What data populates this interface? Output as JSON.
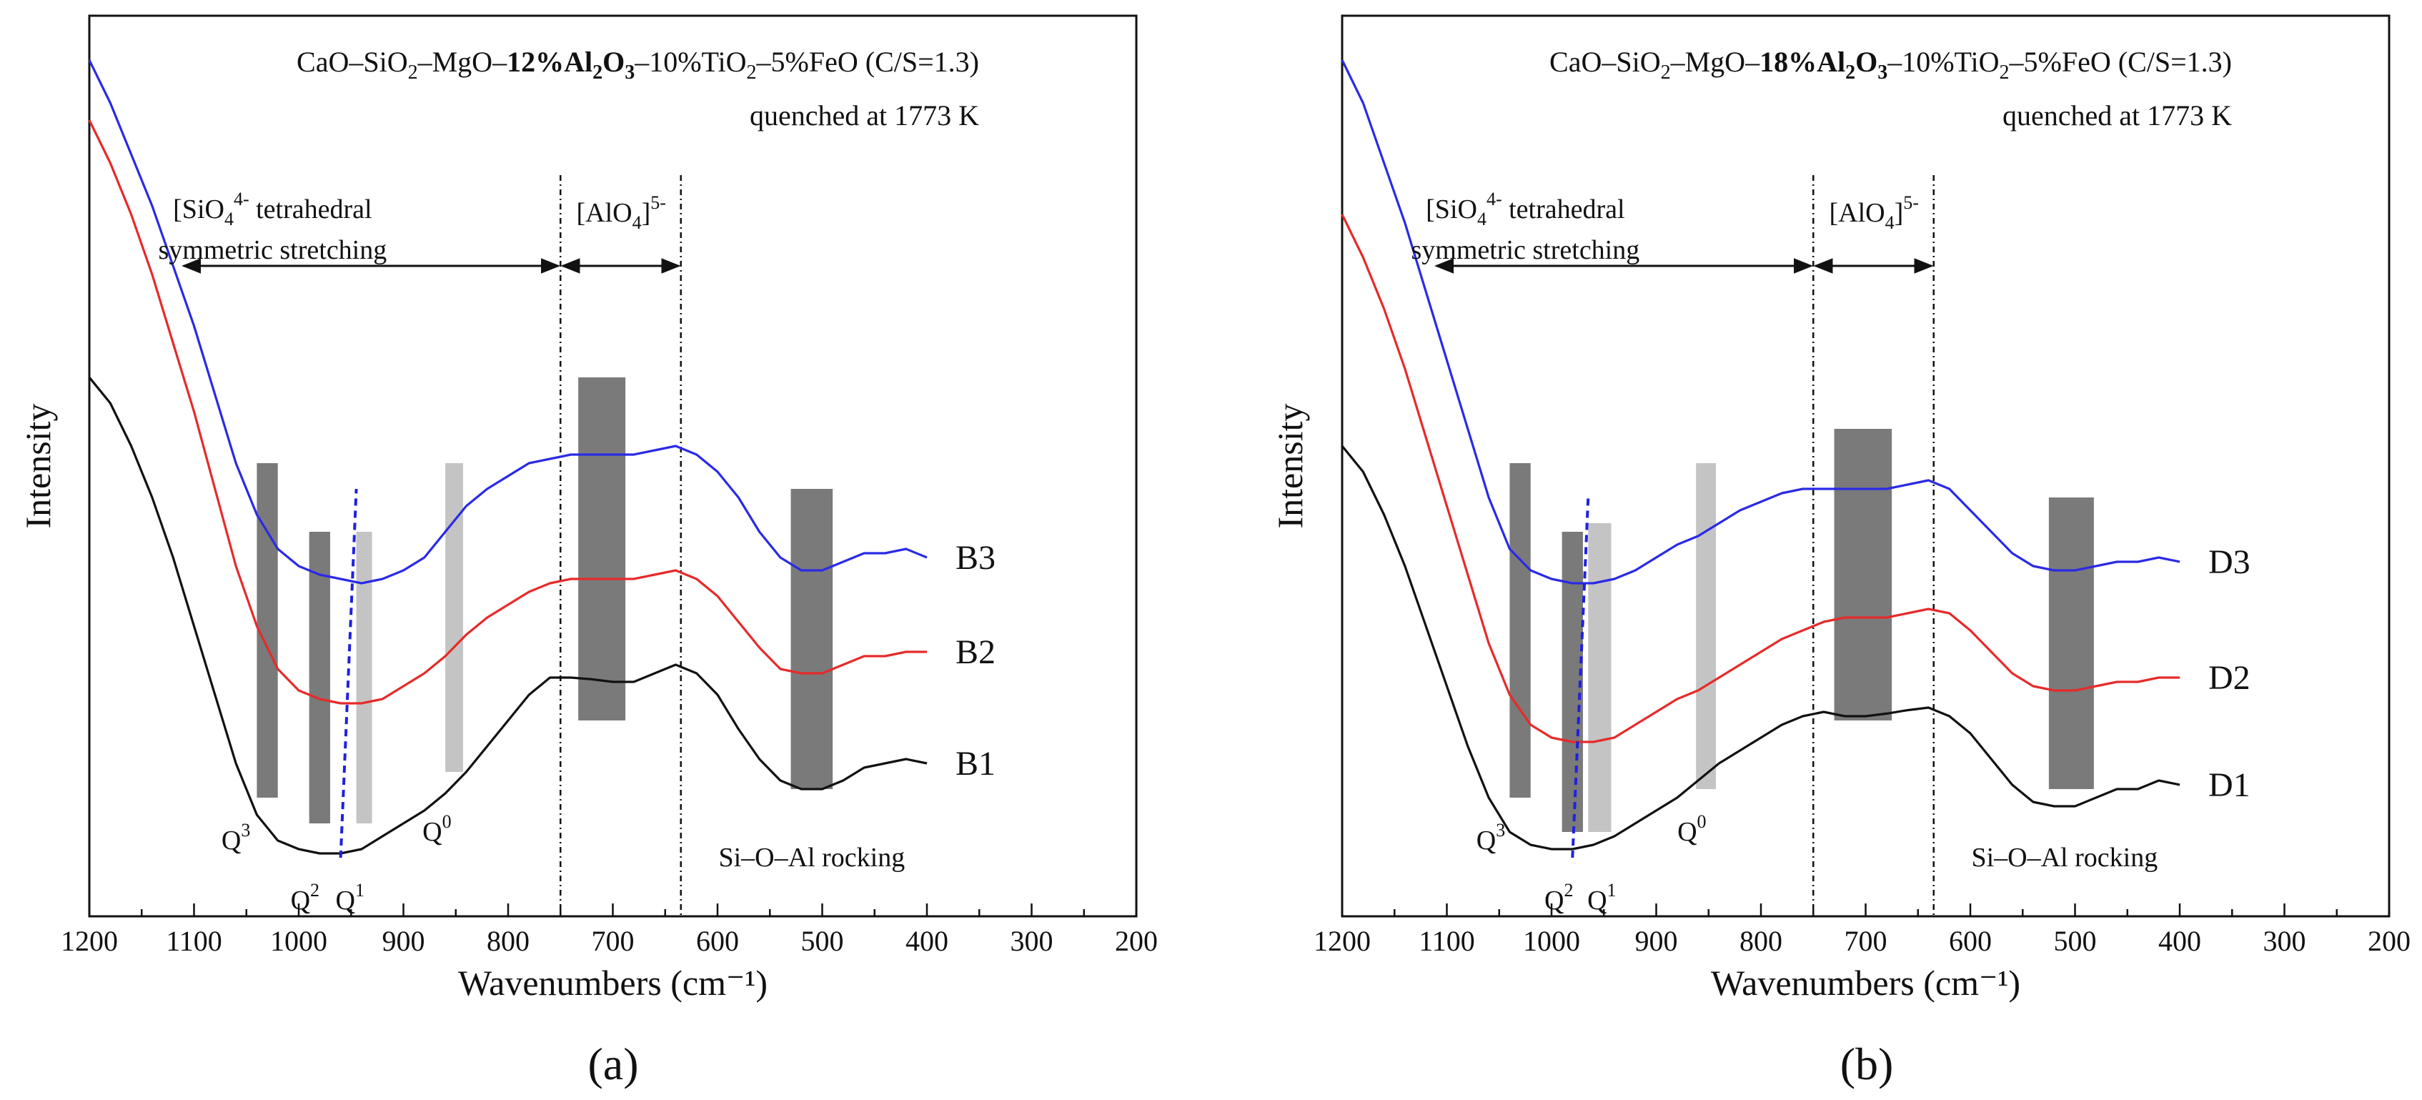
{
  "charts": [
    {
      "panel_label": "(a)",
      "title_parts": {
        "pre": "CaO–SiO",
        "pre_sub": "2",
        "mid": "–MgO–",
        "bold": "12%Al",
        "bold_sub1": "2",
        "bold_mid": "O",
        "bold_sub2": "3",
        "post": "–10%TiO",
        "post_sub": "2",
        "tail": "–5%FeO (C/S=1.3)"
      },
      "quench_text": "quenched at 1773 K"
    },
    {
      "panel_label": "(b)",
      "title_parts": {
        "pre": "CaO–SiO",
        "pre_sub": "2",
        "mid": "–MgO–",
        "bold": "18%Al",
        "bold_sub1": "2",
        "bold_mid": "O",
        "bold_sub2": "3",
        "post": "–10%TiO",
        "post_sub": "2",
        "tail": "–5%FeO (C/S=1.3)"
      },
      "quench_text": "quenched at 1773 K"
    }
  ],
  "chart_data": [
    {
      "type": "line",
      "title": "CaO–SiO2–MgO–12%Al2O3–10%TiO2–5%FeO (C/S=1.3) quenched at 1773 K",
      "xlabel": "Wavenumbers (cm⁻¹)",
      "ylabel": "Intensity",
      "xlim": [
        1200,
        200
      ],
      "ylim": [
        0,
        1.0
      ],
      "xticks": [
        1200,
        1100,
        1000,
        900,
        800,
        700,
        600,
        500,
        400,
        300,
        200
      ],
      "tick_labels": [
        "1200",
        "1100",
        "1000",
        "900",
        "800",
        "700",
        "600",
        "500",
        "400",
        "300",
        "200"
      ],
      "series": [
        {
          "name": "B3",
          "color": "#2a2ae6",
          "x": [
            1200,
            1180,
            1160,
            1140,
            1120,
            1100,
            1080,
            1060,
            1040,
            1020,
            1000,
            980,
            960,
            940,
            920,
            900,
            880,
            860,
            840,
            820,
            800,
            780,
            760,
            740,
            720,
            700,
            680,
            660,
            640,
            620,
            600,
            580,
            560,
            540,
            520,
            500,
            480,
            460,
            440,
            420,
            400
          ],
          "y": [
            0.98,
            0.93,
            0.87,
            0.81,
            0.74,
            0.67,
            0.59,
            0.51,
            0.45,
            0.41,
            0.39,
            0.38,
            0.375,
            0.37,
            0.375,
            0.385,
            0.4,
            0.43,
            0.46,
            0.48,
            0.495,
            0.51,
            0.515,
            0.52,
            0.52,
            0.52,
            0.52,
            0.525,
            0.53,
            0.52,
            0.5,
            0.47,
            0.43,
            0.4,
            0.385,
            0.385,
            0.395,
            0.405,
            0.405,
            0.41,
            0.4
          ]
        },
        {
          "name": "B2",
          "color": "#e62a2a",
          "x": [
            1200,
            1180,
            1160,
            1140,
            1120,
            1100,
            1080,
            1060,
            1040,
            1020,
            1000,
            980,
            960,
            940,
            920,
            900,
            880,
            860,
            840,
            820,
            800,
            780,
            760,
            740,
            720,
            700,
            680,
            660,
            640,
            620,
            600,
            580,
            560,
            540,
            520,
            500,
            480,
            460,
            440,
            420,
            400
          ],
          "y": [
            0.91,
            0.86,
            0.8,
            0.73,
            0.65,
            0.57,
            0.48,
            0.39,
            0.32,
            0.27,
            0.245,
            0.235,
            0.23,
            0.23,
            0.235,
            0.25,
            0.265,
            0.285,
            0.31,
            0.33,
            0.345,
            0.36,
            0.37,
            0.375,
            0.375,
            0.375,
            0.375,
            0.38,
            0.385,
            0.375,
            0.355,
            0.325,
            0.295,
            0.27,
            0.265,
            0.265,
            0.275,
            0.285,
            0.285,
            0.29,
            0.29
          ]
        },
        {
          "name": "B1",
          "color": "#111111",
          "x": [
            1200,
            1180,
            1160,
            1140,
            1120,
            1100,
            1080,
            1060,
            1040,
            1020,
            1000,
            980,
            960,
            940,
            920,
            900,
            880,
            860,
            840,
            820,
            800,
            780,
            760,
            740,
            720,
            700,
            680,
            660,
            640,
            620,
            600,
            580,
            560,
            540,
            520,
            500,
            480,
            460,
            440,
            420,
            400
          ],
          "y": [
            0.61,
            0.58,
            0.53,
            0.47,
            0.4,
            0.32,
            0.24,
            0.16,
            0.1,
            0.07,
            0.06,
            0.055,
            0.055,
            0.06,
            0.075,
            0.09,
            0.105,
            0.125,
            0.15,
            0.18,
            0.21,
            0.24,
            0.26,
            0.26,
            0.258,
            0.255,
            0.255,
            0.265,
            0.275,
            0.265,
            0.24,
            0.2,
            0.165,
            0.14,
            0.13,
            0.13,
            0.14,
            0.155,
            0.16,
            0.165,
            0.16
          ]
        }
      ],
      "bands": [
        {
          "x1": 1040,
          "x2": 1020,
          "ytop": 0.51,
          "ybot": 0.12,
          "shade": "dark"
        },
        {
          "x1": 990,
          "x2": 970,
          "ytop": 0.43,
          "ybot": 0.09,
          "shade": "dark"
        },
        {
          "x1": 945,
          "x2": 930,
          "ytop": 0.43,
          "ybot": 0.09,
          "shade": "light"
        },
        {
          "x1": 860,
          "x2": 843,
          "ytop": 0.51,
          "ybot": 0.15,
          "shade": "light"
        },
        {
          "x1": 733,
          "x2": 688,
          "ytop": 0.61,
          "ybot": 0.21,
          "shade": "dark"
        },
        {
          "x1": 530,
          "x2": 490,
          "ytop": 0.48,
          "ybot": 0.13,
          "shade": "dark"
        }
      ],
      "guide_lines": [
        750,
        635
      ],
      "dashed_trend": {
        "x": [
          960,
          945
        ],
        "y": [
          0.05,
          0.48
        ]
      },
      "q_labels": [
        {
          "base": "Q",
          "sup": "3",
          "x": 1060,
          "y": 0.06
        },
        {
          "base": "Q",
          "sup": "2",
          "x": 994,
          "y": -0.01
        },
        {
          "base": "Q",
          "sup": "1",
          "x": 951,
          "y": -0.01
        },
        {
          "base": "Q",
          "sup": "0",
          "x": 868,
          "y": 0.07
        }
      ],
      "annotations": {
        "sio4_pre": "[SiO",
        "sio4_sub": "4",
        "sio4_sup": "4-",
        "sio4_post": " tetrahedral",
        "sio4_line2": "symmetric stretching",
        "alo4_pre": "[AlO",
        "alo4_sub": "4",
        "alo4_sup": "5-",
        "rocking": "Si–O–Al rocking"
      }
    },
    {
      "type": "line",
      "title": "CaO–SiO2–MgO–18%Al2O3–10%TiO2–5%FeO (C/S=1.3) quenched at 1773 K",
      "xlabel": "Wavenumbers (cm⁻¹)",
      "ylabel": "Intensity",
      "xlim": [
        1200,
        200
      ],
      "ylim": [
        0,
        1.0
      ],
      "xticks": [
        1200,
        1100,
        1000,
        900,
        800,
        700,
        600,
        500,
        400,
        300,
        200
      ],
      "tick_labels": [
        "1200",
        "1100",
        "1000",
        "900",
        "800",
        "700",
        "600",
        "500",
        "400",
        "300",
        "200"
      ],
      "series": [
        {
          "name": "D3",
          "color": "#2a2ae6",
          "x": [
            1200,
            1180,
            1160,
            1140,
            1120,
            1100,
            1080,
            1060,
            1040,
            1020,
            1000,
            980,
            960,
            940,
            920,
            900,
            880,
            860,
            840,
            820,
            800,
            780,
            760,
            740,
            720,
            700,
            680,
            660,
            640,
            620,
            600,
            580,
            560,
            540,
            520,
            500,
            480,
            460,
            440,
            420,
            400
          ],
          "y": [
            0.98,
            0.93,
            0.86,
            0.79,
            0.71,
            0.63,
            0.55,
            0.47,
            0.41,
            0.385,
            0.375,
            0.37,
            0.37,
            0.375,
            0.385,
            0.4,
            0.415,
            0.425,
            0.44,
            0.455,
            0.465,
            0.475,
            0.48,
            0.48,
            0.48,
            0.48,
            0.48,
            0.485,
            0.49,
            0.48,
            0.455,
            0.43,
            0.405,
            0.39,
            0.385,
            0.385,
            0.39,
            0.395,
            0.395,
            0.4,
            0.395
          ]
        },
        {
          "name": "D2",
          "color": "#e62a2a",
          "x": [
            1200,
            1180,
            1160,
            1140,
            1120,
            1100,
            1080,
            1060,
            1040,
            1020,
            1000,
            980,
            960,
            940,
            920,
            900,
            880,
            860,
            840,
            820,
            800,
            780,
            760,
            740,
            720,
            700,
            680,
            660,
            640,
            620,
            600,
            580,
            560,
            540,
            520,
            500,
            480,
            460,
            440,
            420,
            400
          ],
          "y": [
            0.8,
            0.75,
            0.69,
            0.62,
            0.54,
            0.46,
            0.38,
            0.3,
            0.24,
            0.205,
            0.19,
            0.185,
            0.185,
            0.19,
            0.205,
            0.22,
            0.235,
            0.245,
            0.26,
            0.275,
            0.29,
            0.305,
            0.315,
            0.325,
            0.33,
            0.33,
            0.33,
            0.335,
            0.34,
            0.335,
            0.315,
            0.29,
            0.265,
            0.25,
            0.245,
            0.245,
            0.25,
            0.255,
            0.255,
            0.26,
            0.26
          ]
        },
        {
          "name": "D1",
          "color": "#111111",
          "x": [
            1200,
            1180,
            1160,
            1140,
            1120,
            1100,
            1080,
            1060,
            1040,
            1020,
            1000,
            980,
            960,
            940,
            920,
            900,
            880,
            860,
            840,
            820,
            800,
            780,
            760,
            740,
            720,
            700,
            680,
            660,
            640,
            620,
            600,
            580,
            560,
            540,
            520,
            500,
            480,
            460,
            440,
            420,
            400
          ],
          "y": [
            0.53,
            0.5,
            0.45,
            0.39,
            0.32,
            0.25,
            0.18,
            0.12,
            0.08,
            0.065,
            0.06,
            0.06,
            0.065,
            0.075,
            0.09,
            0.105,
            0.12,
            0.14,
            0.16,
            0.175,
            0.19,
            0.205,
            0.215,
            0.22,
            0.215,
            0.215,
            0.218,
            0.222,
            0.225,
            0.215,
            0.195,
            0.165,
            0.135,
            0.115,
            0.11,
            0.11,
            0.12,
            0.13,
            0.13,
            0.14,
            0.135
          ]
        }
      ],
      "bands": [
        {
          "x1": 1040,
          "x2": 1020,
          "ytop": 0.51,
          "ybot": 0.12,
          "shade": "dark"
        },
        {
          "x1": 990,
          "x2": 970,
          "ytop": 0.43,
          "ybot": 0.08,
          "shade": "dark"
        },
        {
          "x1": 965,
          "x2": 943,
          "ytop": 0.44,
          "ybot": 0.08,
          "shade": "light"
        },
        {
          "x1": 862,
          "x2": 843,
          "ytop": 0.51,
          "ybot": 0.13,
          "shade": "light"
        },
        {
          "x1": 730,
          "x2": 675,
          "ytop": 0.55,
          "ybot": 0.21,
          "shade": "dark"
        },
        {
          "x1": 525,
          "x2": 482,
          "ytop": 0.47,
          "ybot": 0.13,
          "shade": "dark"
        }
      ],
      "guide_lines": [
        750,
        635
      ],
      "dashed_trend": {
        "x": [
          980,
          965
        ],
        "y": [
          0.05,
          0.47
        ]
      },
      "q_labels": [
        {
          "base": "Q",
          "sup": "3",
          "x": 1058,
          "y": 0.06
        },
        {
          "base": "Q",
          "sup": "2",
          "x": 993,
          "y": -0.01
        },
        {
          "base": "Q",
          "sup": "1",
          "x": 952,
          "y": -0.01
        },
        {
          "base": "Q",
          "sup": "0",
          "x": 866,
          "y": 0.07
        }
      ],
      "annotations": {
        "sio4_pre": "[SiO",
        "sio4_sub": "4",
        "sio4_sup": "4-",
        "sio4_post": " tetrahedral",
        "sio4_line2": "symmetric stretching",
        "alo4_pre": "[AlO",
        "alo4_sub": "4",
        "alo4_sup": "5-",
        "rocking": "Si–O–Al rocking"
      }
    }
  ]
}
